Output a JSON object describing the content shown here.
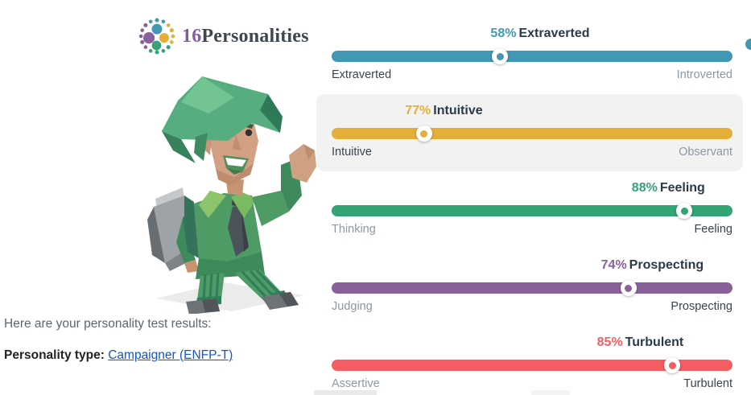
{
  "logo": {
    "prefix": "16",
    "name": "Personalities",
    "prefix_color": "#7E5FA5",
    "name_color": "#3E4751",
    "dot_colors": {
      "top": "#4298B4",
      "right": "#E4AE3A",
      "bottom": "#33A474",
      "left": "#88619A"
    }
  },
  "intro": {
    "line1": "Here are your personality test results:",
    "type_label": "Personality type:",
    "type_link": "Campaigner (ENFP-T)",
    "link_color": "#1155CC"
  },
  "chart_data": {
    "type": "trait-sliders",
    "legend_position": "above-each-bar",
    "axis_range_pct": [
      0,
      100
    ],
    "traits": [
      {
        "percent": 58,
        "percent_label": "58%",
        "trait": "Extraverted",
        "left_label": "Extraverted",
        "right_label": "Introverted",
        "dominant": "left",
        "color": "#4298B4",
        "marker_pct": 42,
        "title_center_pct": 52,
        "highlighted": false
      },
      {
        "percent": 77,
        "percent_label": "77%",
        "trait": "Intuitive",
        "left_label": "Intuitive",
        "right_label": "Observant",
        "dominant": "left",
        "color": "#E4AE3A",
        "marker_pct": 23,
        "title_center_pct": 28,
        "highlighted": true
      },
      {
        "percent": 88,
        "percent_label": "88%",
        "trait": "Feeling",
        "left_label": "Thinking",
        "right_label": "Feeling",
        "dominant": "right",
        "color": "#33A474",
        "marker_pct": 88,
        "title_center_pct": 84,
        "highlighted": false
      },
      {
        "percent": 74,
        "percent_label": "74%",
        "trait": "Prospecting",
        "left_label": "Judging",
        "right_label": "Prospecting",
        "dominant": "right",
        "color": "#88619A",
        "marker_pct": 74,
        "title_center_pct": 80,
        "highlighted": false
      },
      {
        "percent": 85,
        "percent_label": "85%",
        "trait": "Turbulent",
        "left_label": "Assertive",
        "right_label": "Turbulent",
        "dominant": "right",
        "color": "#F25E62",
        "marker_pct": 85,
        "title_center_pct": 77,
        "highlighted": false
      }
    ]
  },
  "artifacts": {
    "right_edge_bar_color": "#4298B4",
    "bottom_strip1_color": "#E9E9E9",
    "bottom_strip2_color": "#F4F4F4"
  }
}
